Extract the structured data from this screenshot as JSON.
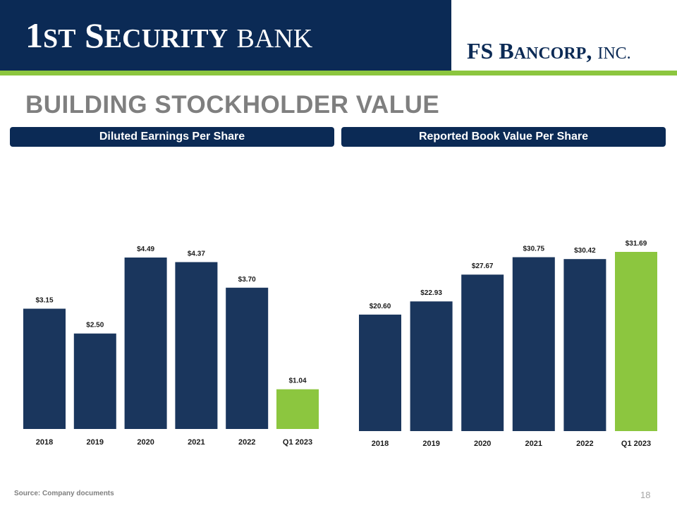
{
  "header": {
    "bank_logo_text": "1ST SECURITY BANK",
    "corp_logo_text": "FS BANCORP, INC."
  },
  "page": {
    "title": "BUILDING STOCKHOLDER VALUE",
    "source": "Source: Company documents",
    "page_number": "18"
  },
  "colors": {
    "navy": "#1a365d",
    "green": "#8cc63f",
    "header_navy": "#0b2a55",
    "gray_title": "#7f7f7f"
  },
  "chart_data": [
    {
      "type": "bar",
      "title": "Diluted Earnings Per Share",
      "categories": [
        "2018",
        "2019",
        "2020",
        "2021",
        "2022",
        "Q1 2023"
      ],
      "values": [
        3.15,
        2.5,
        4.49,
        4.37,
        3.7,
        1.04
      ],
      "labels": [
        "$3.15",
        "$2.50",
        "$4.49",
        "$4.37",
        "$3.70",
        "$1.04"
      ],
      "highlight_index": 5,
      "ylim": [
        0,
        4.49
      ],
      "xlabel": "",
      "ylabel": "",
      "grid": false
    },
    {
      "type": "bar",
      "title": "Reported Book Value Per Share",
      "categories": [
        "2018",
        "2019",
        "2020",
        "2021",
        "2022",
        "Q1 2023"
      ],
      "values": [
        20.6,
        22.93,
        27.67,
        30.75,
        30.42,
        31.69
      ],
      "labels": [
        "$20.60",
        "$22.93",
        "$27.67",
        "$30.75",
        "$30.42",
        "$31.69"
      ],
      "highlight_index": 5,
      "ylim": [
        0,
        31.69
      ],
      "xlabel": "",
      "ylabel": "",
      "grid": false
    }
  ]
}
